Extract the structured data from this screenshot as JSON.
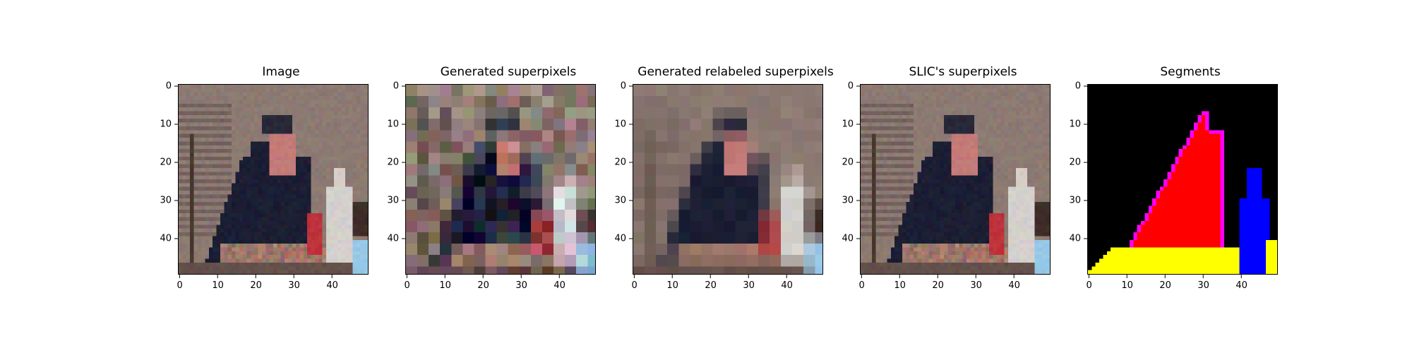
{
  "figure": {
    "image_size": 50,
    "ticks": [
      0,
      10,
      20,
      30,
      40
    ],
    "panels": [
      {
        "id": "image",
        "title": "Image",
        "style": "photo"
      },
      {
        "id": "generated",
        "title": "Generated superpixels",
        "style": "blocks-noisy"
      },
      {
        "id": "relabeled",
        "title": "Generated relabeled superpixels",
        "style": "blocks-smooth"
      },
      {
        "id": "slic",
        "title": "SLIC's superpixels",
        "style": "photo"
      },
      {
        "id": "segments",
        "title": "Segments",
        "style": "segments"
      }
    ]
  },
  "colors": {
    "wall": "#8c7a72",
    "shirt": "#1b1e33",
    "skin": "#c47a78",
    "bottle": "#d4d0cc",
    "segment_background": "#000000",
    "segment_person": "#ff0000",
    "segment_border": "#ff00ff",
    "segment_table": "#ffff00",
    "segment_bottle": "#0000ff"
  }
}
